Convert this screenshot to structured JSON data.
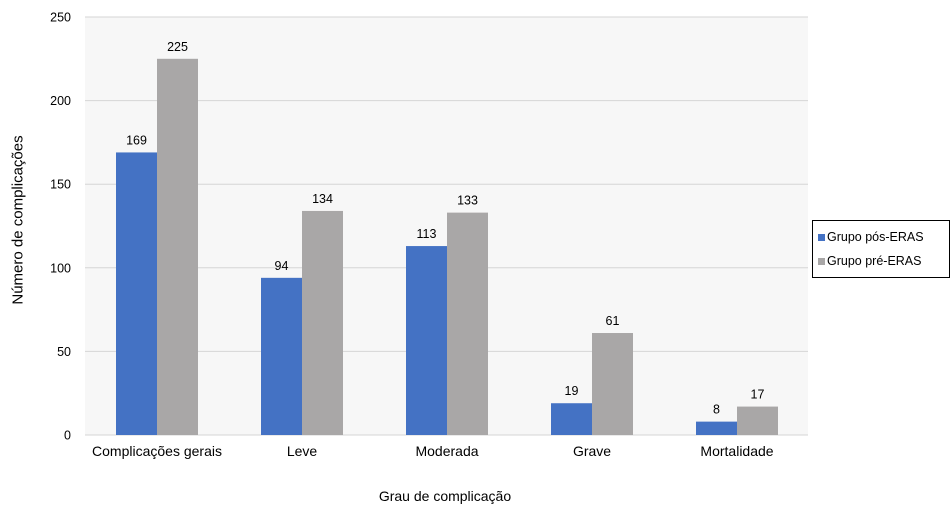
{
  "chart_data": {
    "type": "bar",
    "categories": [
      "Complicações gerais",
      "Leve",
      "Moderada",
      "Grave",
      "Mortalidade"
    ],
    "series": [
      {
        "name": "Grupo pós-ERAS",
        "color": "#4472c4",
        "values": [
          169,
          94,
          113,
          19,
          8
        ]
      },
      {
        "name": "Grupo pré-ERAS",
        "color": "#a9a7a7",
        "values": [
          225,
          134,
          133,
          61,
          17
        ]
      }
    ],
    "xlabel": "Grau de complicação",
    "ylabel": "Número de complicações",
    "ylim": [
      0,
      250
    ],
    "yticks": [
      0,
      50,
      100,
      150,
      200,
      250
    ],
    "grid": true,
    "legend_position": "right",
    "plot_background": "#f7f7f7"
  }
}
